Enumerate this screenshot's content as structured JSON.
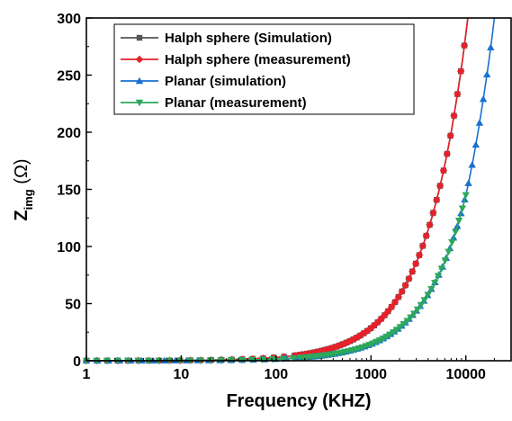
{
  "chart_data": {
    "type": "line",
    "xlabel": "Frequency (KHZ)",
    "ylabel": {
      "main": "Z",
      "sub": "img",
      "unit": " (Ω)"
    },
    "x_scale": "log",
    "xlim": [
      1,
      30000
    ],
    "ylim": [
      0,
      300
    ],
    "x_ticks": [
      1,
      10,
      100,
      1000,
      10000
    ],
    "x_tick_labels": [
      "1",
      "10",
      "100",
      "1000",
      "10000"
    ],
    "y_ticks": [
      0,
      50,
      100,
      150,
      200,
      250,
      300
    ],
    "y_tick_labels": [
      "0",
      "50",
      "100",
      "150",
      "200",
      "250",
      "300"
    ],
    "grid": false,
    "legend_position": "top-left",
    "series": [
      {
        "name": "Halph sphere (Simulation)",
        "color": "#555555",
        "marker": "square",
        "x": [
          1,
          10,
          100,
          300,
          1000,
          2000,
          3000,
          5000,
          7000,
          8000,
          9000,
          10000,
          10500
        ],
        "y": [
          0.03,
          0.3,
          2.9,
          8.6,
          28.6,
          57.2,
          85.8,
          143,
          200,
          229,
          257,
          286,
          300
        ]
      },
      {
        "name": "Halph sphere (measurement)",
        "color": "#e8202a",
        "marker": "diamond",
        "x": [
          1,
          10,
          100,
          300,
          1000,
          2000,
          3000,
          5000,
          7000,
          8000,
          9000,
          10000,
          10500
        ],
        "y": [
          0.03,
          0.3,
          2.9,
          8.6,
          28.6,
          57.2,
          85.8,
          143,
          200,
          229,
          257,
          286,
          300
        ]
      },
      {
        "name": "Planar (simulation)",
        "color": "#1a6fd0",
        "marker": "triangle-up",
        "x": [
          1,
          10,
          100,
          300,
          1000,
          2000,
          3000,
          5000,
          7000,
          10000,
          15000,
          20000
        ],
        "y": [
          0.015,
          0.15,
          1.45,
          4.4,
          14.5,
          29,
          43.5,
          72.5,
          101.5,
          145,
          225,
          300
        ]
      },
      {
        "name": "Planar (measurement)",
        "color": "#2ca85a",
        "marker": "triangle-down",
        "x": [
          1,
          10,
          100,
          300,
          1000,
          2000,
          3000,
          5000,
          7000,
          10000
        ],
        "y": [
          0.015,
          0.15,
          1.45,
          4.4,
          14.5,
          29,
          43.5,
          72.5,
          101.5,
          145
        ]
      }
    ]
  }
}
